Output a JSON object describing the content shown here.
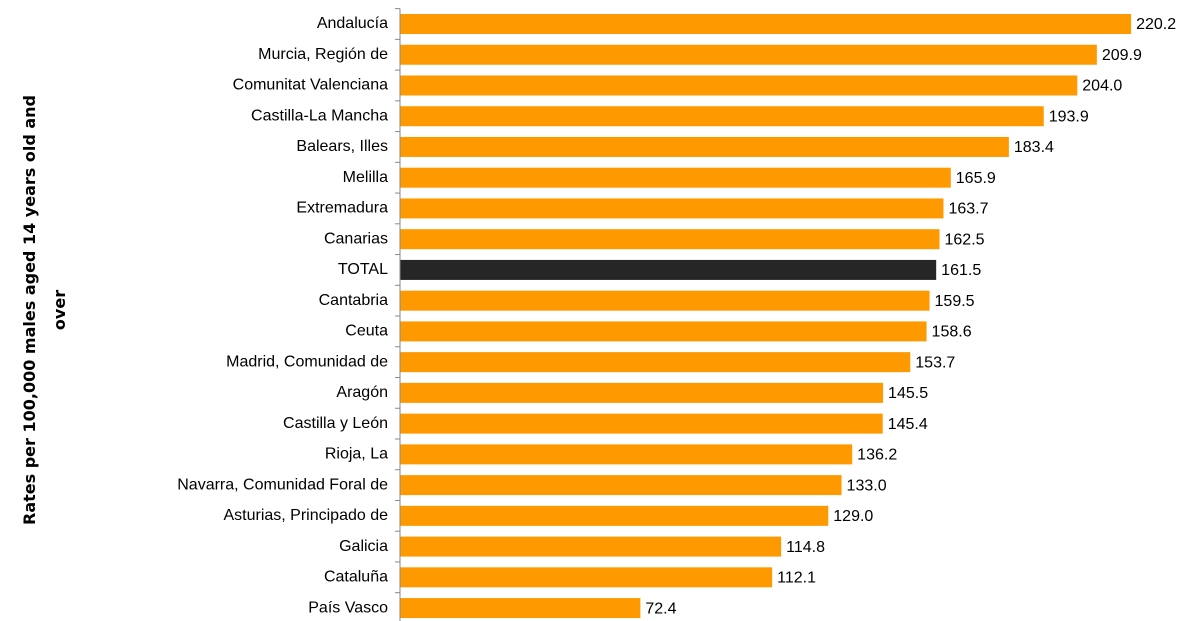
{
  "chart_data": {
    "type": "barh",
    "ylabel": [
      "Rates per 100,000 males aged 14 years old and",
      "over"
    ],
    "categories": [
      "Andalucía",
      "Murcia, Región de",
      "Comunitat Valenciana",
      "Castilla-La Mancha",
      "Balears, Illes",
      "Melilla",
      "Extremadura",
      "Canarias",
      "TOTAL",
      "Cantabria",
      "Ceuta",
      "Madrid, Comunidad de",
      "Aragón",
      "Castilla y León",
      "Rioja, La",
      "Navarra, Comunidad Foral de",
      "Asturias, Principado de",
      "Galicia",
      "Cataluña",
      "País Vasco"
    ],
    "values": [
      220.2,
      209.9,
      204.0,
      193.9,
      183.4,
      165.9,
      163.7,
      162.5,
      161.5,
      159.5,
      158.6,
      153.7,
      145.5,
      145.4,
      136.2,
      133.0,
      129.0,
      114.8,
      112.1,
      72.4
    ],
    "value_labels": [
      "220.2",
      "209.9",
      "204.0",
      "193.9",
      "183.4",
      "165.9",
      "163.7",
      "162.5",
      "161.5",
      "159.5",
      "158.6",
      "153.7",
      "145.5",
      "145.4",
      "136.2",
      "133.0",
      "129.0",
      "114.8",
      "112.1",
      "72.4"
    ],
    "colors": [
      "#ff9900",
      "#ff9900",
      "#ff9900",
      "#ff9900",
      "#ff9900",
      "#ff9900",
      "#ff9900",
      "#ff9900",
      "#262626",
      "#ff9900",
      "#ff9900",
      "#ff9900",
      "#ff9900",
      "#ff9900",
      "#ff9900",
      "#ff9900",
      "#ff9900",
      "#ff9900",
      "#ff9900",
      "#ff9900"
    ]
  }
}
